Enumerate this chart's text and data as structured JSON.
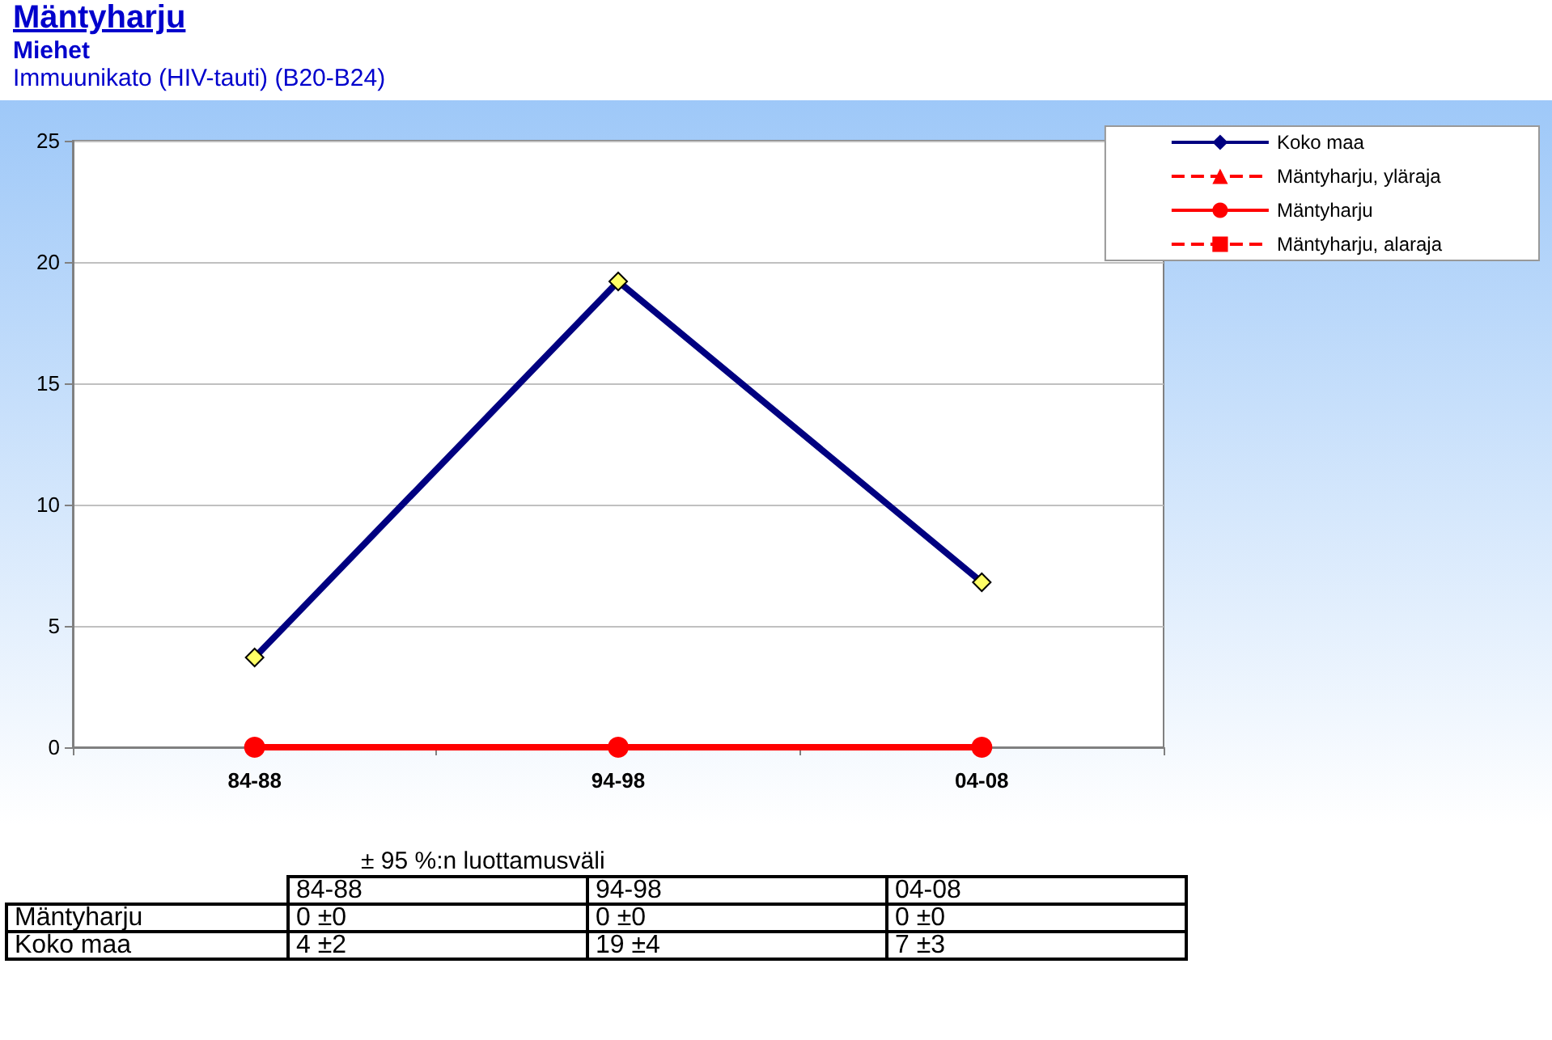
{
  "chart_data": {
    "type": "line",
    "title": "Mäntyharju",
    "subtitle": "Miehet",
    "annotations": [
      "Immuunikato (HIV-tauti) (B20-B24)",
      "± 95 %:n luottamusväli"
    ],
    "categories": [
      "84-88",
      "94-98",
      "04-08"
    ],
    "series": [
      {
        "name": "Koko maa",
        "color": "#000080",
        "marker": "diamond",
        "line_style": "solid",
        "values": [
          3.7,
          19.2,
          6.8
        ],
        "value_labels": [
          "4 ±2",
          "19 ±4",
          "7 ±3"
        ]
      },
      {
        "name": "Mäntyharju, yläraja",
        "color": "#ff0000",
        "marker": "triangle",
        "line_style": "dashed",
        "values": [
          null,
          null,
          null
        ]
      },
      {
        "name": "Mäntyharju",
        "color": "#ff0000",
        "marker": "circle",
        "line_style": "solid",
        "values": [
          0,
          0,
          0
        ],
        "value_labels": [
          "0 ±0",
          "0 ±0",
          "0 ±0"
        ]
      },
      {
        "name": "Mäntyharju, alaraja",
        "color": "#ff0000",
        "marker": "square",
        "line_style": "dashed",
        "values": [
          null,
          null,
          null
        ]
      }
    ],
    "ylim": [
      0,
      25
    ],
    "yticks": [
      0,
      5,
      10,
      15,
      20,
      25
    ],
    "grid": "y",
    "legend": "top right"
  }
}
